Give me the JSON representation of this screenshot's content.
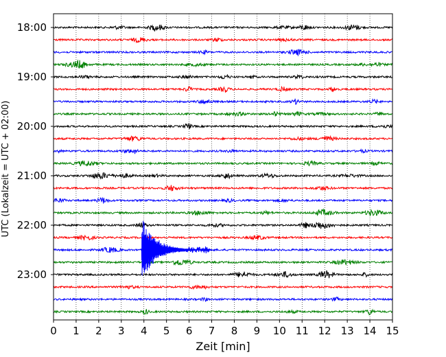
{
  "chart_data": {
    "type": "line",
    "subtype": "helicorder",
    "xlabel": "Zeit  [min]",
    "ylabel": "UTC (Lokalzeit = UTC + 02:00)",
    "xlim": [
      0,
      15
    ],
    "x_ticks": [
      "0",
      "1",
      "2",
      "3",
      "4",
      "5",
      "6",
      "7",
      "8",
      "9",
      "10",
      "11",
      "12",
      "13",
      "14",
      "15"
    ],
    "y_tick_labels": [
      "18:00",
      "19:00",
      "20:00",
      "21:00",
      "22:00",
      "23:00"
    ],
    "grid": "vertical dotted lines at each minute",
    "trace_colors": [
      "#000000",
      "#ff0000",
      "#0000ff",
      "#008000"
    ],
    "trace_start_times": [
      "18:00",
      "18:15",
      "18:30",
      "18:45",
      "19:00",
      "19:15",
      "19:30",
      "19:45",
      "20:00",
      "20:15",
      "20:30",
      "20:45",
      "21:00",
      "21:15",
      "21:30",
      "21:45",
      "22:00",
      "22:15",
      "22:30",
      "22:45",
      "23:00",
      "23:15",
      "23:30",
      "23:45"
    ],
    "event": {
      "trace_start": "22:30",
      "onset_minute": 3.9,
      "peak_amplitude_rows": 2.8,
      "coda_end_minute": 7.0
    }
  }
}
